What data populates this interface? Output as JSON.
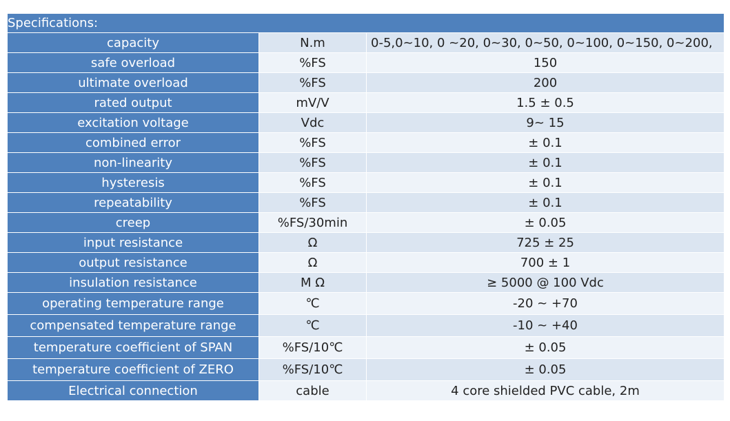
{
  "table": {
    "header": "Specifications:",
    "rows": [
      {
        "param": "capacity",
        "unit": "N.m",
        "value": "0-5,0~10, 0 ~20, 0~30, 0~50, 0~100, 0~150, 0~200,"
      },
      {
        "param": "safe overload",
        "unit": "%FS",
        "value": "150"
      },
      {
        "param": "ultimate overload",
        "unit": "%FS",
        "value": "200"
      },
      {
        "param": "rated output",
        "unit": "mV/V",
        "value": "1.5 ± 0.5"
      },
      {
        "param": "excitation voltage",
        "unit": "Vdc",
        "value": "9~ 15"
      },
      {
        "param": "combined error",
        "unit": "%FS",
        "value": "± 0.1"
      },
      {
        "param": "non-linearity",
        "unit": "%FS",
        "value": "± 0.1"
      },
      {
        "param": "hysteresis",
        "unit": "%FS",
        "value": "± 0.1"
      },
      {
        "param": "repeatability",
        "unit": "%FS",
        "value": "± 0.1"
      },
      {
        "param": "creep",
        "unit": "%FS/30min",
        "value": "± 0.05"
      },
      {
        "param": "input resistance",
        "unit": "Ω",
        "value": "725 ± 25"
      },
      {
        "param": "output resistance",
        "unit": "Ω",
        "value": "700 ± 1"
      },
      {
        "param": "insulation resistance",
        "unit": "M Ω",
        "value": "≥ 5000 @ 100 Vdc"
      },
      {
        "param": "operating temperature range",
        "unit": "℃",
        "value": "-20 ~ +70"
      },
      {
        "param": "compensated temperature range",
        "unit": "℃",
        "value": "-10 ~ +40"
      },
      {
        "param": "temperature coefficient of SPAN",
        "unit": "%FS/10℃",
        "value": "± 0.05"
      },
      {
        "param": "temperature coefficient of ZERO",
        "unit": "%FS/10℃",
        "value": "± 0.05"
      },
      {
        "param": "Electrical connection",
        "unit": "cable",
        "value": "4 core shielded PVC cable, 2m"
      }
    ]
  },
  "colors": {
    "header_bg": "#4f81bd",
    "header_text": "#ffffff",
    "row_light": "#dbe5f1",
    "row_lighter": "#eef3f9",
    "body_text": "#222222"
  }
}
